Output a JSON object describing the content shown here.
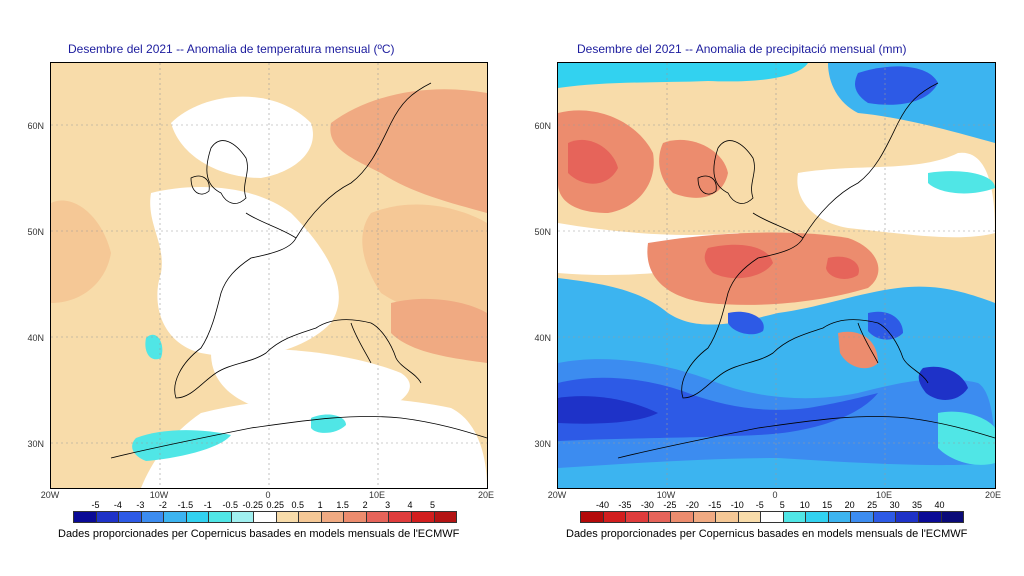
{
  "maps": {
    "temperature": {
      "title": "Desembre del 2021 -- Anomalia de temperatura mensual (ºC)",
      "credit": "Dades proporcionades per Copernicus basades en models mensuals de l'ECMWF",
      "lat_labels": [
        "60N",
        "50N",
        "40N",
        "30N"
      ],
      "lon_labels": [
        "20W",
        "10W",
        "0",
        "10E",
        "20E"
      ],
      "colorbar_labels": [
        "-5",
        "-4",
        "-3",
        "-2",
        "-1.5",
        "-1",
        "-0.5",
        "-0.25",
        "0.25",
        "0.5",
        "1",
        "1.5",
        "2",
        "3",
        "4",
        "5"
      ],
      "colorbar_colors": [
        "#0a0a96",
        "#1e32c8",
        "#2d5ae6",
        "#3c8cf0",
        "#3cb4f0",
        "#32d2f0",
        "#50e6e6",
        "#a0f0f0",
        "#ffffff",
        "#f8dcaa",
        "#f5c896",
        "#f0aa82",
        "#ec8c6e",
        "#e6645a",
        "#e03c3c",
        "#d21e1e",
        "#b41414"
      ]
    },
    "precipitation": {
      "title": "Desembre del 2021 -- Anomalia de precipitació mensual (mm)",
      "credit": "Dades proporcionades per Copernicus basades en models mensuals de l'ECMWF",
      "lat_labels": [
        "60N",
        "50N",
        "40N",
        "30N"
      ],
      "lon_labels": [
        "20W",
        "10W",
        "0",
        "10E",
        "20E"
      ],
      "colorbar_labels": [
        "-40",
        "-35",
        "-30",
        "-25",
        "-20",
        "-15",
        "-10",
        "-5",
        "5",
        "10",
        "15",
        "20",
        "25",
        "30",
        "35",
        "40"
      ],
      "colorbar_colors": [
        "#b40a0a",
        "#d21e1e",
        "#e03c3c",
        "#e6645a",
        "#ec8c6e",
        "#f0aa82",
        "#f5c896",
        "#f8dcaa",
        "#ffffff",
        "#50e6e6",
        "#32d2f0",
        "#3cb4f0",
        "#3c8cf0",
        "#2d5ae6",
        "#1e32c8",
        "#0a0a96",
        "#0a0a78"
      ]
    }
  }
}
